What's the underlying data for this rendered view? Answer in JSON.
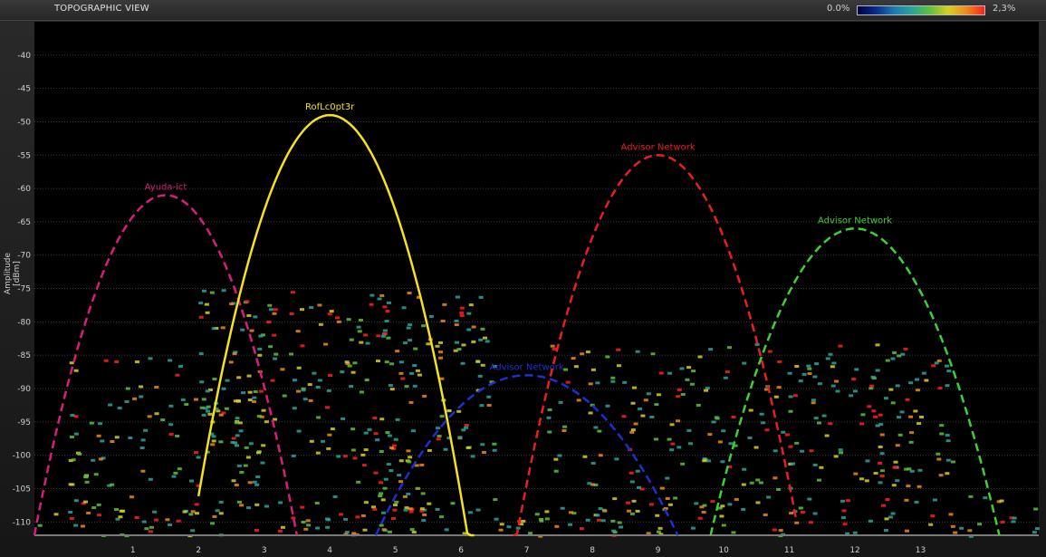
{
  "window": {
    "title": "TOPOGRAPHIC VIEW"
  },
  "legend": {
    "min_label": "0.0%",
    "max_label": "2,3%",
    "gradient": [
      "#000044",
      "#0a2a8a",
      "#1a7ab0",
      "#2aa59a",
      "#5ec23a",
      "#d8d020",
      "#f08a1a",
      "#ff2020"
    ]
  },
  "colors": {
    "plot_background": "#000000",
    "grid": "#3c3c3c",
    "tick_text": "#d0d0d0",
    "axis_line": "#7a7a7a"
  },
  "chart_data": {
    "type": "line",
    "title": "TOPOGRAPHIC VIEW",
    "xlabel": "",
    "ylabel": "Amplitude [dBm]",
    "xlim": [
      -0.5,
      14.8
    ],
    "ylim": [
      -112,
      -35
    ],
    "x_ticks": [
      1,
      2,
      3,
      4,
      5,
      6,
      7,
      8,
      9,
      10,
      11,
      12,
      13
    ],
    "y_ticks": [
      -40,
      -45,
      -50,
      -55,
      -60,
      -65,
      -70,
      -75,
      -80,
      -85,
      -90,
      -95,
      -100,
      -105,
      -110
    ],
    "grid": true,
    "series": [
      {
        "name": "Ayuda-ict",
        "color": "#d61e7a",
        "style": "dashed",
        "x_start": -0.5,
        "x_end": 3.5,
        "center": 1.5,
        "peak": -61
      },
      {
        "name": "RofLc0pt3r",
        "color": "#f5e21c",
        "style": "solid",
        "x_start": 2.0,
        "x_end": 6.2,
        "center": 4.0,
        "peak": -49
      },
      {
        "name": "Advisor Network",
        "color": "#1e2fd0",
        "style": "dashed",
        "x_start": 4.7,
        "x_end": 9.3,
        "center": 7.0,
        "peak": -88
      },
      {
        "name": "Advisor Network",
        "color": "#ea1e1e",
        "style": "dashed",
        "x_start": 6.8,
        "x_end": 11.1,
        "center": 9.0,
        "peak": -55
      },
      {
        "name": "Advisor Network",
        "color": "#3cd234",
        "style": "dashed",
        "x_start": 9.8,
        "x_end": 14.2,
        "center": 12.0,
        "peak": -66
      }
    ],
    "density_clusters": [
      {
        "x": [
          2.0,
          6.5
        ],
        "y": [
          -100,
          -75
        ],
        "level": 0.35
      },
      {
        "x": [
          0.0,
          3.0
        ],
        "y": [
          -105,
          -85
        ],
        "level": 0.25
      },
      {
        "x": [
          7.3,
          13.5
        ],
        "y": [
          -105,
          -83
        ],
        "level": 0.25
      },
      {
        "x": [
          4.3,
          5.5
        ],
        "y": [
          -112,
          -98
        ],
        "level": 0.8
      },
      {
        "x": [
          -0.5,
          14.8
        ],
        "y": [
          -112,
          -106
        ],
        "level": 0.45
      }
    ]
  }
}
